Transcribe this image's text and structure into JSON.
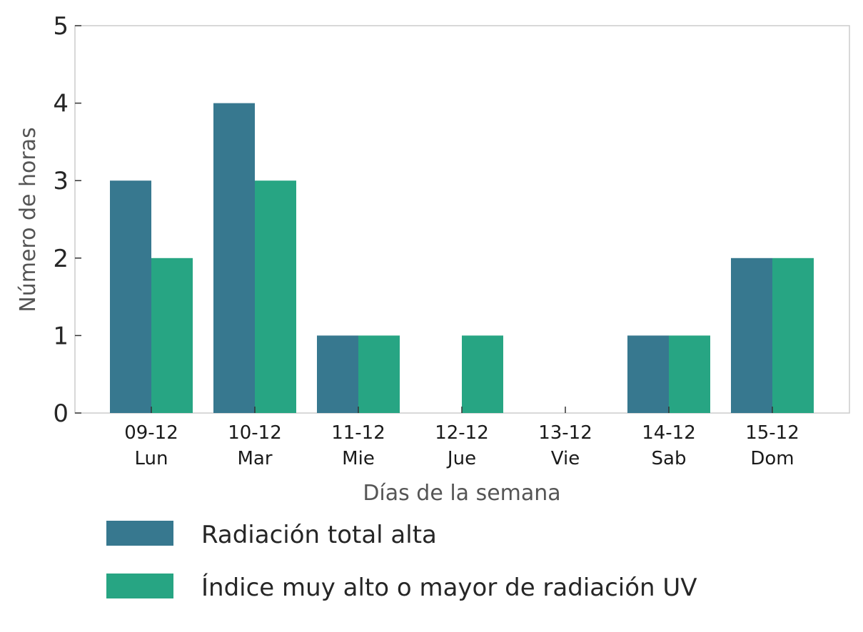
{
  "chart_data": {
    "type": "bar",
    "categories": [
      [
        "09-12",
        "Lun"
      ],
      [
        "10-12",
        "Mar"
      ],
      [
        "11-12",
        "Mie"
      ],
      [
        "12-12",
        "Jue"
      ],
      [
        "13-12",
        "Vie"
      ],
      [
        "14-12",
        "Sab"
      ],
      [
        "15-12",
        "Dom"
      ]
    ],
    "series": [
      {
        "name": "Radiación total alta",
        "values": [
          3,
          4,
          1,
          0,
          0,
          1,
          2
        ],
        "color": "#37788f"
      },
      {
        "name": "Índice muy alto o mayor de radiación UV",
        "values": [
          2,
          3,
          1,
          1,
          0,
          1,
          2
        ],
        "color": "#27a583"
      }
    ],
    "xlabel": "Días de la semana",
    "ylabel": "Número de horas",
    "ylim": [
      0,
      5
    ],
    "yticks": [
      0,
      1,
      2,
      3,
      4,
      5
    ],
    "grid": false,
    "legend_position": "bottom-left, below plot"
  }
}
